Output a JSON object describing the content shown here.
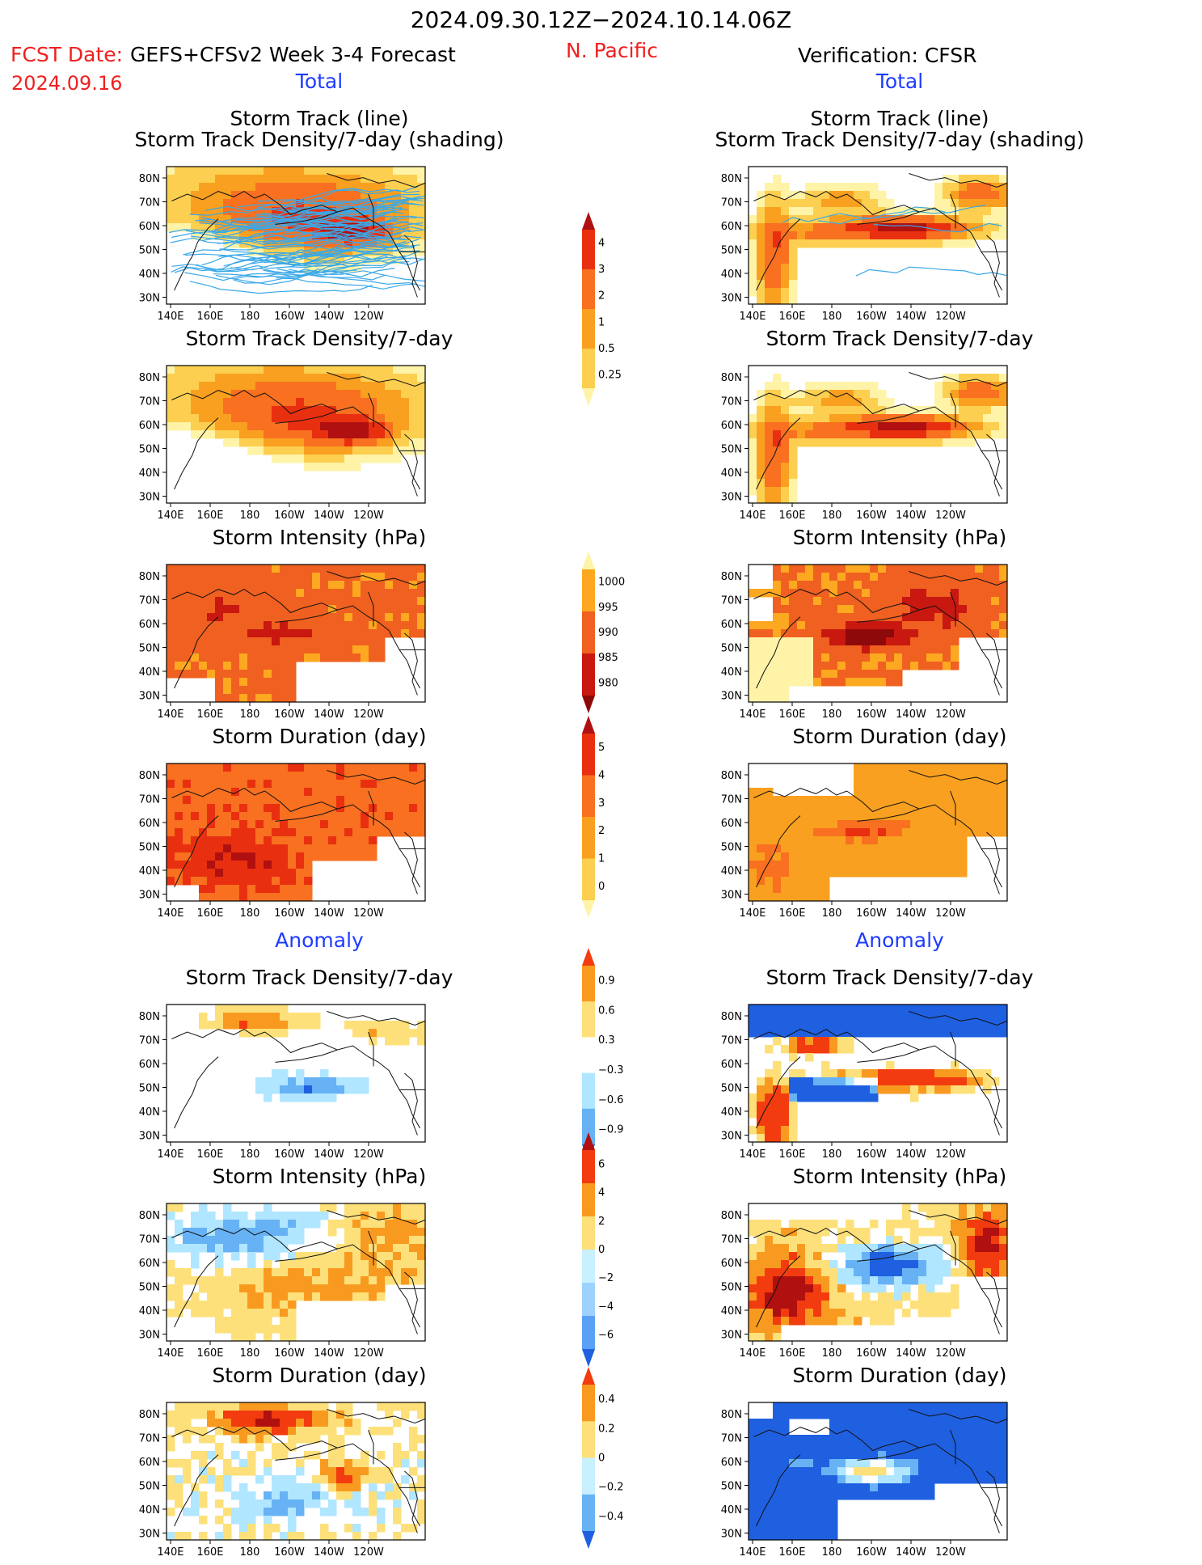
{
  "header": {
    "date_range": "2024.09.30.12Z−2024.10.14.06Z",
    "fcst_label": "FCST Date:",
    "fcst_date": "2024.09.16",
    "forecast_name": "GEFS+CFSv2 Week 3-4 Forecast",
    "region": "N. Pacific",
    "verification": "Verification: CFSR",
    "total_left": "Total",
    "total_right": "Total",
    "anomaly_left": "Anomaly",
    "anomaly_right": "Anomaly"
  },
  "panel_titles": {
    "p1_line1": "Storm Track (line)",
    "p1_line2": "Storm Track Density/7-day (shading)",
    "p2": "Storm Track Density/7-day",
    "p3": "Storm Intensity (hPa)",
    "p4": "Storm Duration (day)",
    "p5": "Storm Track Density/7-day",
    "p6": "Storm Intensity (hPa)",
    "p7": "Storm Duration (day)"
  },
  "axes": {
    "x_ticks": [
      "140E",
      "160E",
      "180",
      "160W",
      "140W",
      "120W"
    ],
    "y_ticks": [
      "80N",
      "70N",
      "60N",
      "50N",
      "40N",
      "30N"
    ]
  },
  "colorbars": [
    {
      "name": "density-total",
      "labels": [
        "4",
        "3",
        "2",
        "1",
        "0.5",
        "0.25"
      ],
      "colors": [
        "#b01010",
        "#e83010",
        "#f87020",
        "#f9a020",
        "#fccf50",
        "#fff3a8"
      ]
    },
    {
      "name": "intensity-total",
      "labels": [
        "1000",
        "995",
        "990",
        "985",
        "980"
      ],
      "colors": [
        "#fff3a8",
        "#fca820",
        "#f06020",
        "#c81810",
        "#8e0a0a"
      ]
    },
    {
      "name": "duration-total",
      "labels": [
        "5",
        "4",
        "3",
        "2",
        "1",
        "0"
      ],
      "colors": [
        "#b01010",
        "#e83010",
        "#f87020",
        "#f9a020",
        "#fccf50",
        "#fff3a8"
      ]
    },
    {
      "name": "density-anomaly",
      "labels": [
        "0.9",
        "0.6",
        "0.3",
        "−0.3",
        "−0.6",
        "−0.9"
      ],
      "colors": [
        "#f23c10",
        "#f99a20",
        "#fde07a",
        "#ffffff",
        "#b0e6ff",
        "#67b2f5",
        "#1f60e0"
      ]
    },
    {
      "name": "intensity-anomaly",
      "labels": [
        "6",
        "4",
        "2",
        "0",
        "−2",
        "−4",
        "−6"
      ],
      "colors": [
        "#b01010",
        "#f23c10",
        "#f99a20",
        "#fde07a",
        "#c8f0ff",
        "#9dd2ff",
        "#5aa0f5",
        "#1f60e0"
      ]
    },
    {
      "name": "duration-anomaly",
      "labels": [
        "0.4",
        "0.2",
        "0",
        "−0.2",
        "−0.4"
      ],
      "colors": [
        "#f23c10",
        "#f99a20",
        "#fde07a",
        "#c8f0ff",
        "#67b2f5",
        "#1f60e0"
      ]
    }
  ],
  "chart_data": {
    "type": "heatmap",
    "title": "2024.09.30.12Z−2024.10.14.06Z",
    "x_range": [
      "140E",
      "120W"
    ],
    "y_range": [
      "30N",
      "80N"
    ],
    "panels_left": [
      "Storm Track (line) / Storm Track Density/7-day (shading)",
      "Storm Track Density/7-day",
      "Storm Intensity (hPa)",
      "Storm Duration (day)",
      "Storm Track Density/7-day anomaly",
      "Storm Intensity (hPa) anomaly",
      "Storm Duration (day) anomaly"
    ],
    "panels_right": [
      "Storm Track (line) / Storm Track Density/7-day (shading)",
      "Storm Track Density/7-day",
      "Storm Intensity (hPa)",
      "Storm Duration (day)",
      "Storm Track Density/7-day anomaly",
      "Storm Intensity (hPa) anomaly",
      "Storm Duration (day) anomaly"
    ]
  }
}
